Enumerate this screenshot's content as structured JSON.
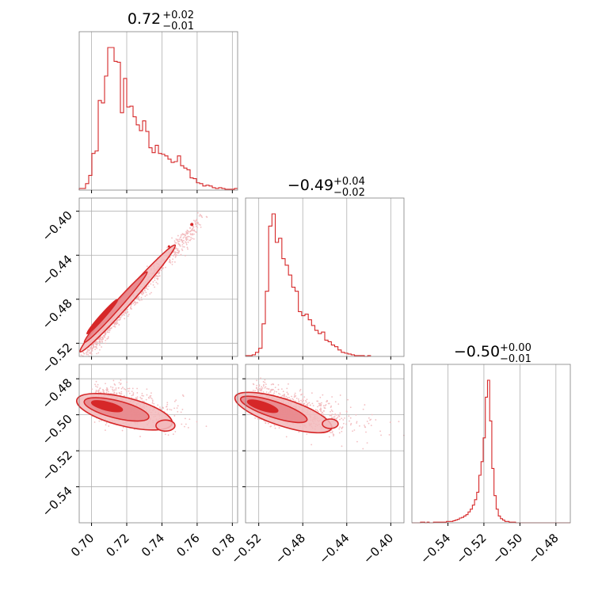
{
  "colors": {
    "accent": "#d62728",
    "fill_light": "#f2b8bb",
    "fill_mid": "#e8868b",
    "grid": "#b0b0b0",
    "frame": "#7f7f7f"
  },
  "chart_data": {
    "type": "corner",
    "parameters": [
      {
        "title_main": "0.72",
        "title_plus": "+0.02",
        "title_minus": "−0.01"
      },
      {
        "title_main": "−0.49",
        "title_plus": "+0.04",
        "title_minus": "−0.02"
      },
      {
        "title_main": "−0.50",
        "title_plus": "+0.00",
        "title_minus": "−0.01"
      }
    ],
    "axes": {
      "p0": {
        "range": [
          0.693,
          0.783
        ],
        "ticks": [
          "0.70",
          "0.72",
          "0.74",
          "0.76",
          "0.78"
        ],
        "tick_values": [
          0.7,
          0.72,
          0.74,
          0.76,
          0.78
        ]
      },
      "p1": {
        "range": [
          -0.532,
          -0.388
        ],
        "ticks": [
          "−0.52",
          "−0.48",
          "−0.44",
          "−0.40"
        ],
        "tick_values": [
          -0.52,
          -0.48,
          -0.44,
          -0.4
        ]
      },
      "p2": {
        "range": [
          -0.56,
          -0.472
        ],
        "ticks": [
          "−0.54",
          "−0.52",
          "−0.50",
          "−0.48"
        ],
        "tick_values": [
          -0.54,
          -0.52,
          -0.5,
          -0.48
        ]
      }
    },
    "grid": true,
    "histograms": [
      {
        "param": "p0",
        "bin_start": 0.693,
        "bin_width": 0.0018,
        "counts": [
          2,
          2,
          8,
          18,
          45,
          48,
          110,
          107,
          140,
          175,
          175,
          158,
          157,
          95,
          137,
          102,
          103,
          90,
          80,
          73,
          85,
          72,
          52,
          46,
          55,
          45,
          44,
          42,
          38,
          34,
          35,
          42,
          30,
          27,
          25,
          15,
          14,
          9,
          8,
          5,
          6,
          5,
          3,
          2,
          3,
          2,
          1,
          1,
          1,
          2
        ]
      },
      {
        "param": "p1",
        "bin_start": -0.532,
        "bin_width": 0.003,
        "counts": [
          1,
          1,
          2,
          5,
          10,
          40,
          80,
          160,
          175,
          140,
          145,
          120,
          112,
          100,
          85,
          80,
          55,
          50,
          52,
          45,
          38,
          32,
          28,
          30,
          20,
          18,
          14,
          12,
          8,
          5,
          4,
          3,
          2,
          1,
          1,
          1,
          0,
          1
        ]
      },
      {
        "param": "p2",
        "bin_start": -0.56,
        "bin_width": 0.0012,
        "counts": [
          0,
          0,
          0,
          0,
          1,
          1,
          0,
          1,
          0,
          0,
          1,
          1,
          1,
          1,
          1,
          1,
          2,
          2,
          2,
          3,
          4,
          5,
          7,
          8,
          10,
          12,
          16,
          20,
          26,
          34,
          45,
          70,
          90,
          125,
          185,
          210,
          150,
          80,
          40,
          20,
          10,
          6,
          4,
          2,
          2,
          1,
          1,
          1,
          0,
          0,
          0,
          0,
          0,
          0,
          0,
          0,
          0,
          0,
          0,
          0,
          0,
          0,
          0,
          0,
          0,
          0,
          0,
          0,
          0,
          0,
          0,
          0,
          0,
          0
        ]
      }
    ],
    "contour_panels": [
      {
        "x": "p0",
        "y": "p1",
        "band_center_y": [
          0.7,
          -0.522,
          0.76,
          -0.41
        ],
        "width_y": 0.006,
        "outlier_x": 0.757,
        "outlier_y": -0.412
      },
      {
        "x": "p0",
        "y": "p2",
        "center": [
          0.71,
          -0.496
        ],
        "spread": [
          0.012,
          0.004
        ]
      },
      {
        "x": "p1",
        "y": "p2",
        "center": [
          -0.51,
          -0.496
        ],
        "spread": [
          0.025,
          0.004
        ]
      }
    ]
  }
}
